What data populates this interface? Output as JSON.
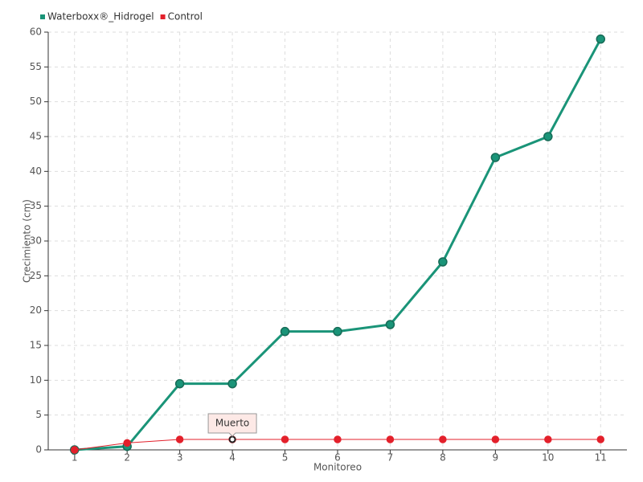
{
  "chart_data": {
    "type": "line",
    "x_label": "Monitoreo",
    "y_label": "Crecimiento (cm)",
    "categories": [
      "1",
      "2",
      "3",
      "4",
      "5",
      "6",
      "7",
      "8",
      "9",
      "10",
      "11"
    ],
    "series": [
      {
        "name": "Waterboxx®_Hidrogel",
        "color": "#1a9478",
        "values": [
          0,
          0.5,
          9.5,
          9.5,
          17,
          17,
          18,
          27,
          42,
          45,
          59
        ]
      },
      {
        "name": "Control",
        "color": "#e3202b",
        "values": [
          0,
          1,
          1.5,
          1.5,
          1.5,
          1.5,
          1.5,
          1.5,
          1.5,
          1.5,
          1.5
        ]
      }
    ],
    "ylim": [
      0,
      60
    ],
    "yticks": [
      0,
      5,
      10,
      15,
      20,
      25,
      30,
      35,
      40,
      45,
      50,
      55,
      60
    ],
    "grid": true,
    "legend": "top-left",
    "annotations": [
      {
        "text": "Muerto",
        "x": "4",
        "series": "Control"
      }
    ]
  }
}
